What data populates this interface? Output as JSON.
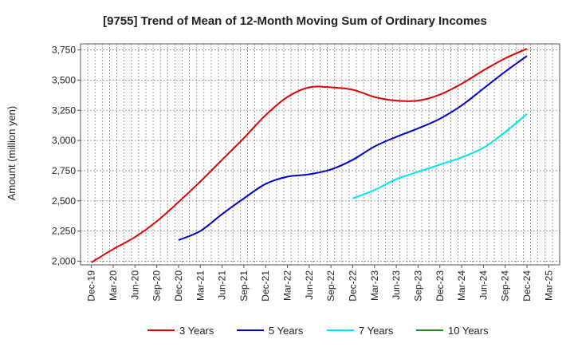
{
  "chart_data": {
    "type": "line",
    "title": "[9755]  Trend of Mean of 12-Month Moving Sum of Ordinary Incomes",
    "xlabel": "",
    "ylabel": "Amount (million yen)",
    "ylim": [
      1970,
      3800
    ],
    "yticks": [
      2000,
      2250,
      2500,
      2750,
      3000,
      3250,
      3500,
      3750
    ],
    "ytick_labels": [
      "2,000",
      "2,250",
      "2,500",
      "2,750",
      "3,000",
      "3,250",
      "3,500",
      "3,750"
    ],
    "categories": [
      "Dec-19",
      "Mar-20",
      "Jun-20",
      "Sep-20",
      "Dec-20",
      "Mar-21",
      "Jun-21",
      "Sep-21",
      "Dec-21",
      "Mar-22",
      "Jun-22",
      "Sep-22",
      "Dec-22",
      "Mar-23",
      "Jun-23",
      "Sep-23",
      "Dec-23",
      "Mar-24",
      "Jun-24",
      "Sep-24",
      "Dec-24",
      "Mar-25"
    ],
    "grid": true,
    "legend_position": "bottom",
    "series": [
      {
        "name": "3 Years",
        "color": "#e00000",
        "values": [
          1990,
          2100,
          2200,
          2330,
          2490,
          2660,
          2840,
          3020,
          3210,
          3360,
          3440,
          3440,
          3420,
          3360,
          3330,
          3330,
          3380,
          3470,
          3580,
          3680,
          3760,
          null
        ]
      },
      {
        "name": "5 Years",
        "color": "#0000cc",
        "values": [
          null,
          null,
          null,
          null,
          2175,
          2250,
          2390,
          2520,
          2640,
          2700,
          2720,
          2760,
          2840,
          2950,
          3030,
          3100,
          3180,
          3290,
          3430,
          3570,
          3700,
          null
        ]
      },
      {
        "name": "7 Years",
        "color": "#00e5ee",
        "values": [
          null,
          null,
          null,
          null,
          null,
          null,
          null,
          null,
          null,
          null,
          null,
          null,
          2520,
          2590,
          2680,
          2740,
          2800,
          2860,
          2940,
          3070,
          3220,
          null
        ]
      },
      {
        "name": "10 Years",
        "color": "#228b22",
        "values": [
          null,
          null,
          null,
          null,
          null,
          null,
          null,
          null,
          null,
          null,
          null,
          null,
          null,
          null,
          null,
          null,
          null,
          null,
          null,
          null,
          null,
          null
        ]
      }
    ]
  }
}
